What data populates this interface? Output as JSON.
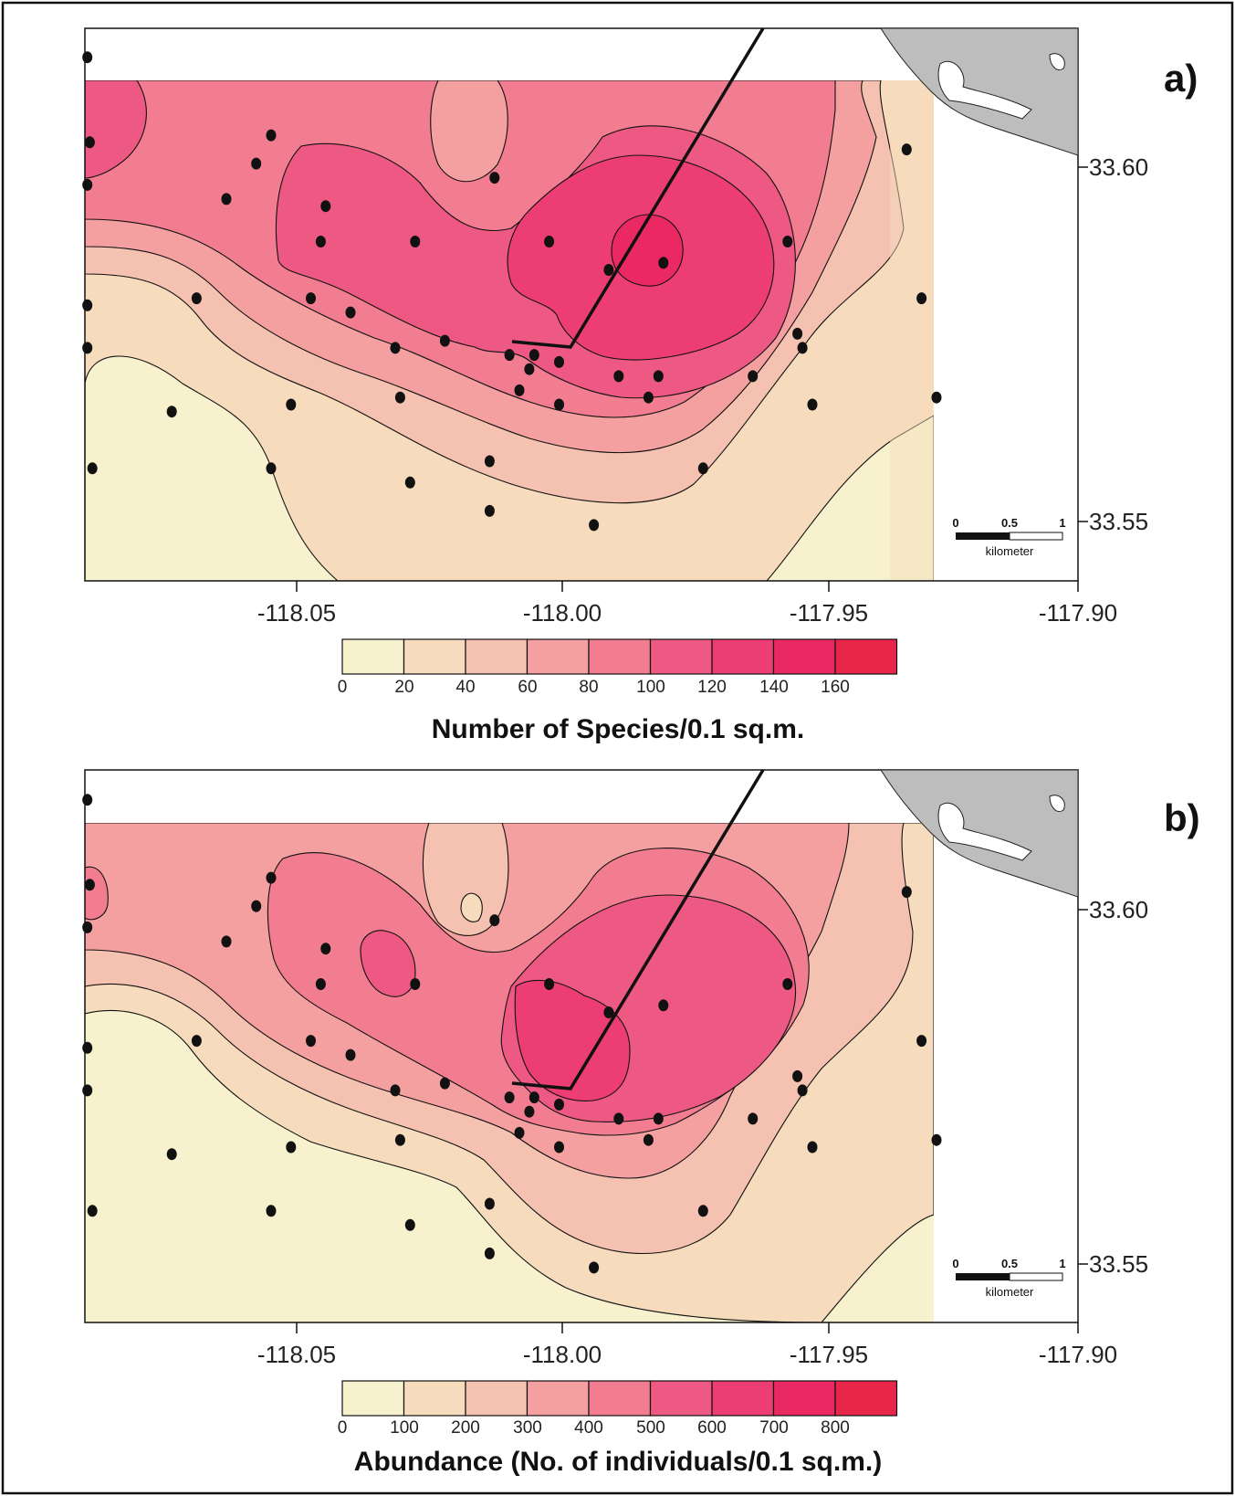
{
  "panels": [
    {
      "id": "a",
      "label": "a)",
      "legend_title": "Number of Species/0.1 sq.m.",
      "legend_ticks": [
        "0",
        "20",
        "40",
        "60",
        "80",
        "100",
        "120",
        "140",
        "160"
      ],
      "x_ticks": [
        "-118.05",
        "-118.00",
        "-117.95",
        "-117.90"
      ],
      "y_ticks": [
        "33.60",
        "33.55"
      ],
      "scale_bar": {
        "labels": [
          "0",
          "0.5",
          "1"
        ],
        "unit": "kilometer"
      }
    },
    {
      "id": "b",
      "label": "b)",
      "legend_title": "Abundance (No. of individuals/0.1 sq.m.)",
      "legend_ticks": [
        "0",
        "100",
        "200",
        "300",
        "400",
        "500",
        "600",
        "700",
        "800"
      ],
      "x_ticks": [
        "-118.05",
        "-118.00",
        "-117.95",
        "-117.90"
      ],
      "y_ticks": [
        "33.60",
        "33.55"
      ],
      "scale_bar": {
        "labels": [
          "0",
          "0.5",
          "1"
        ],
        "unit": "kilometer"
      }
    }
  ],
  "colors": {
    "levels": [
      "#f7f2cd",
      "#f6dcbd",
      "#f5c1b0",
      "#f4a0a0",
      "#f27d91",
      "#ed5983",
      "#ec3d74",
      "#ea2861",
      "#e8264a"
    ],
    "land": "#bdbdbd",
    "station": "#111111"
  },
  "stations": [
    [
      -118.0995,
      33.6155
    ],
    [
      -118.099,
      33.6035
    ],
    [
      -118.0995,
      33.5975
    ],
    [
      -118.0995,
      33.5805
    ],
    [
      -118.0995,
      33.5745
    ],
    [
      -118.0985,
      33.5575
    ],
    [
      -118.0775,
      33.5815
    ],
    [
      -118.0825,
      33.5655
    ],
    [
      -118.0625,
      33.5575
    ],
    [
      -118.0585,
      33.5665
    ],
    [
      -118.0625,
      33.6045
    ],
    [
      -118.0655,
      33.6005
    ],
    [
      -118.0715,
      33.5955
    ],
    [
      -118.0515,
      33.5945
    ],
    [
      -118.0525,
      33.5895
    ],
    [
      -118.0545,
      33.5815
    ],
    [
      -118.0465,
      33.5795
    ],
    [
      -118.0375,
      33.5745
    ],
    [
      -118.0365,
      33.5675
    ],
    [
      -118.0335,
      33.5895
    ],
    [
      -118.0345,
      33.5555
    ],
    [
      -118.0275,
      33.5755
    ],
    [
      -118.0175,
      33.5985
    ],
    [
      -118.0145,
      33.5735
    ],
    [
      -118.0125,
      33.5685
    ],
    [
      -118.0105,
      33.5715
    ],
    [
      -118.0095,
      33.5735
    ],
    [
      -118.0045,
      33.5665
    ],
    [
      -118.0065,
      33.5895
    ],
    [
      -118.0045,
      33.5725
    ],
    [
      -118.0185,
      33.5585
    ],
    [
      -118.0185,
      33.5515
    ],
    [
      -117.9975,
      33.5495
    ],
    [
      -117.9945,
      33.5855
    ],
    [
      -117.9925,
      33.5705
    ],
    [
      -117.9865,
      33.5675
    ],
    [
      -117.9835,
      33.5865
    ],
    [
      -117.9845,
      33.5705
    ],
    [
      -117.9755,
      33.5575
    ],
    [
      -117.9655,
      33.5705
    ],
    [
      -117.9585,
      33.5895
    ],
    [
      -117.9565,
      33.5765
    ],
    [
      -117.9555,
      33.5745
    ],
    [
      -117.9535,
      33.5665
    ],
    [
      -117.9345,
      33.6025
    ],
    [
      -117.9315,
      33.5815
    ],
    [
      -117.9285,
      33.5675
    ]
  ]
}
